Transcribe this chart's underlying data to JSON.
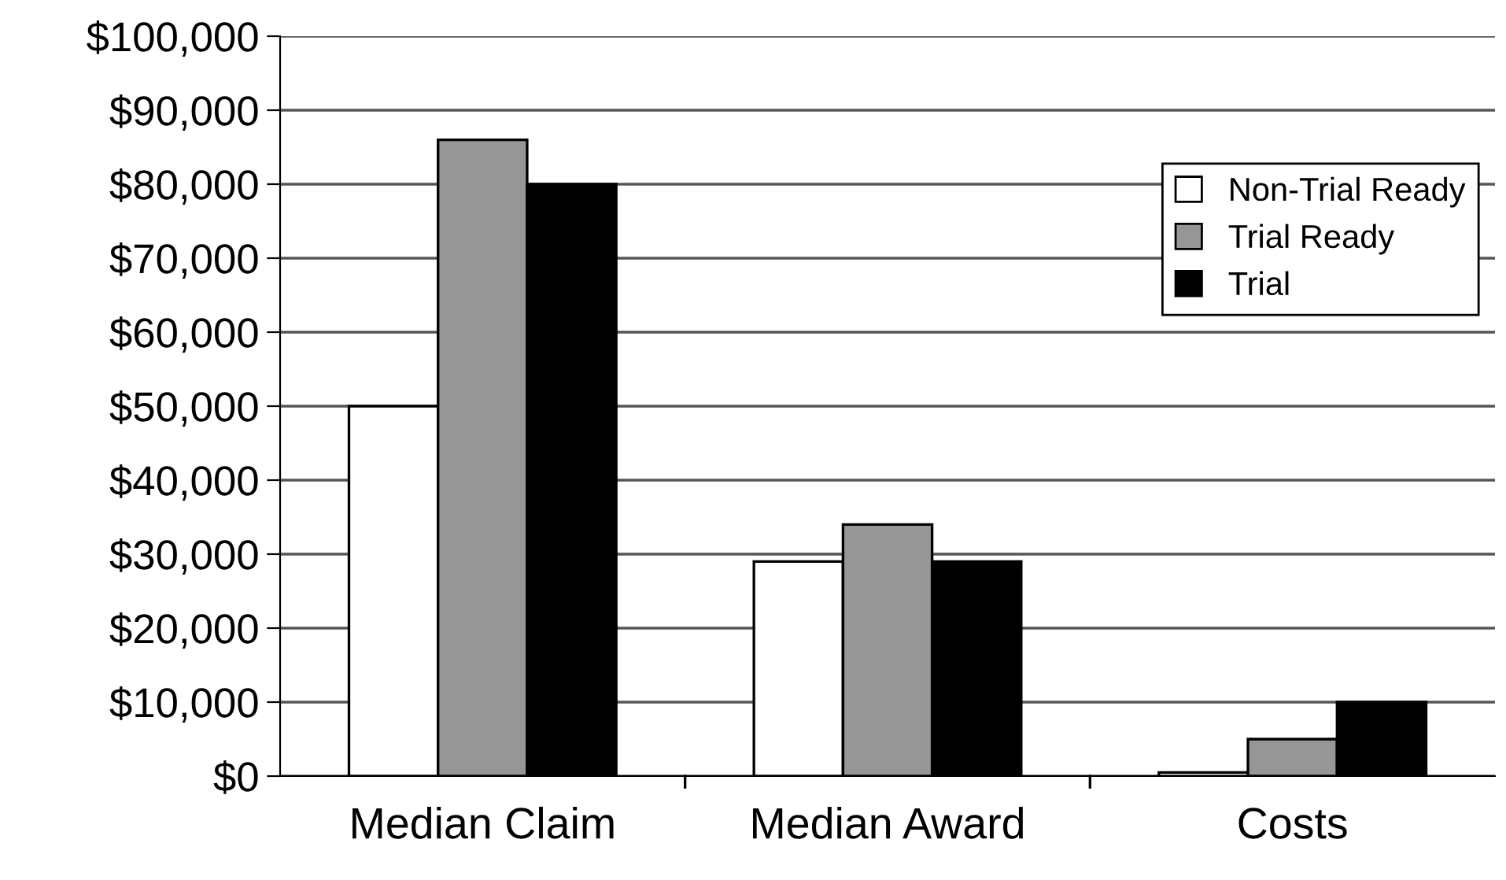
{
  "chart_data": {
    "type": "bar",
    "categories": [
      "Median Claim",
      "Median Award",
      "Costs"
    ],
    "series": [
      {
        "name": "Non-Trial Ready",
        "color": "#ffffff",
        "values": [
          50000,
          29000,
          500
        ]
      },
      {
        "name": "Trial Ready",
        "color": "#969696",
        "values": [
          86000,
          34000,
          5000
        ]
      },
      {
        "name": "Trial",
        "color": "#000000",
        "values": [
          80000,
          29000,
          10000
        ]
      }
    ],
    "ylim": [
      0,
      100000
    ],
    "yticks": [
      {
        "value": 0,
        "label": "$0"
      },
      {
        "value": 10000,
        "label": "$10,000"
      },
      {
        "value": 20000,
        "label": "$20,000"
      },
      {
        "value": 30000,
        "label": "$30,000"
      },
      {
        "value": 40000,
        "label": "$40,000"
      },
      {
        "value": 50000,
        "label": "$50,000"
      },
      {
        "value": 60000,
        "label": "$60,000"
      },
      {
        "value": 70000,
        "label": "$70,000"
      },
      {
        "value": 80000,
        "label": "$80,000"
      },
      {
        "value": 90000,
        "label": "$90,000"
      },
      {
        "value": 100000,
        "label": "$100,000"
      }
    ],
    "grid": "y",
    "legend": "top right"
  }
}
